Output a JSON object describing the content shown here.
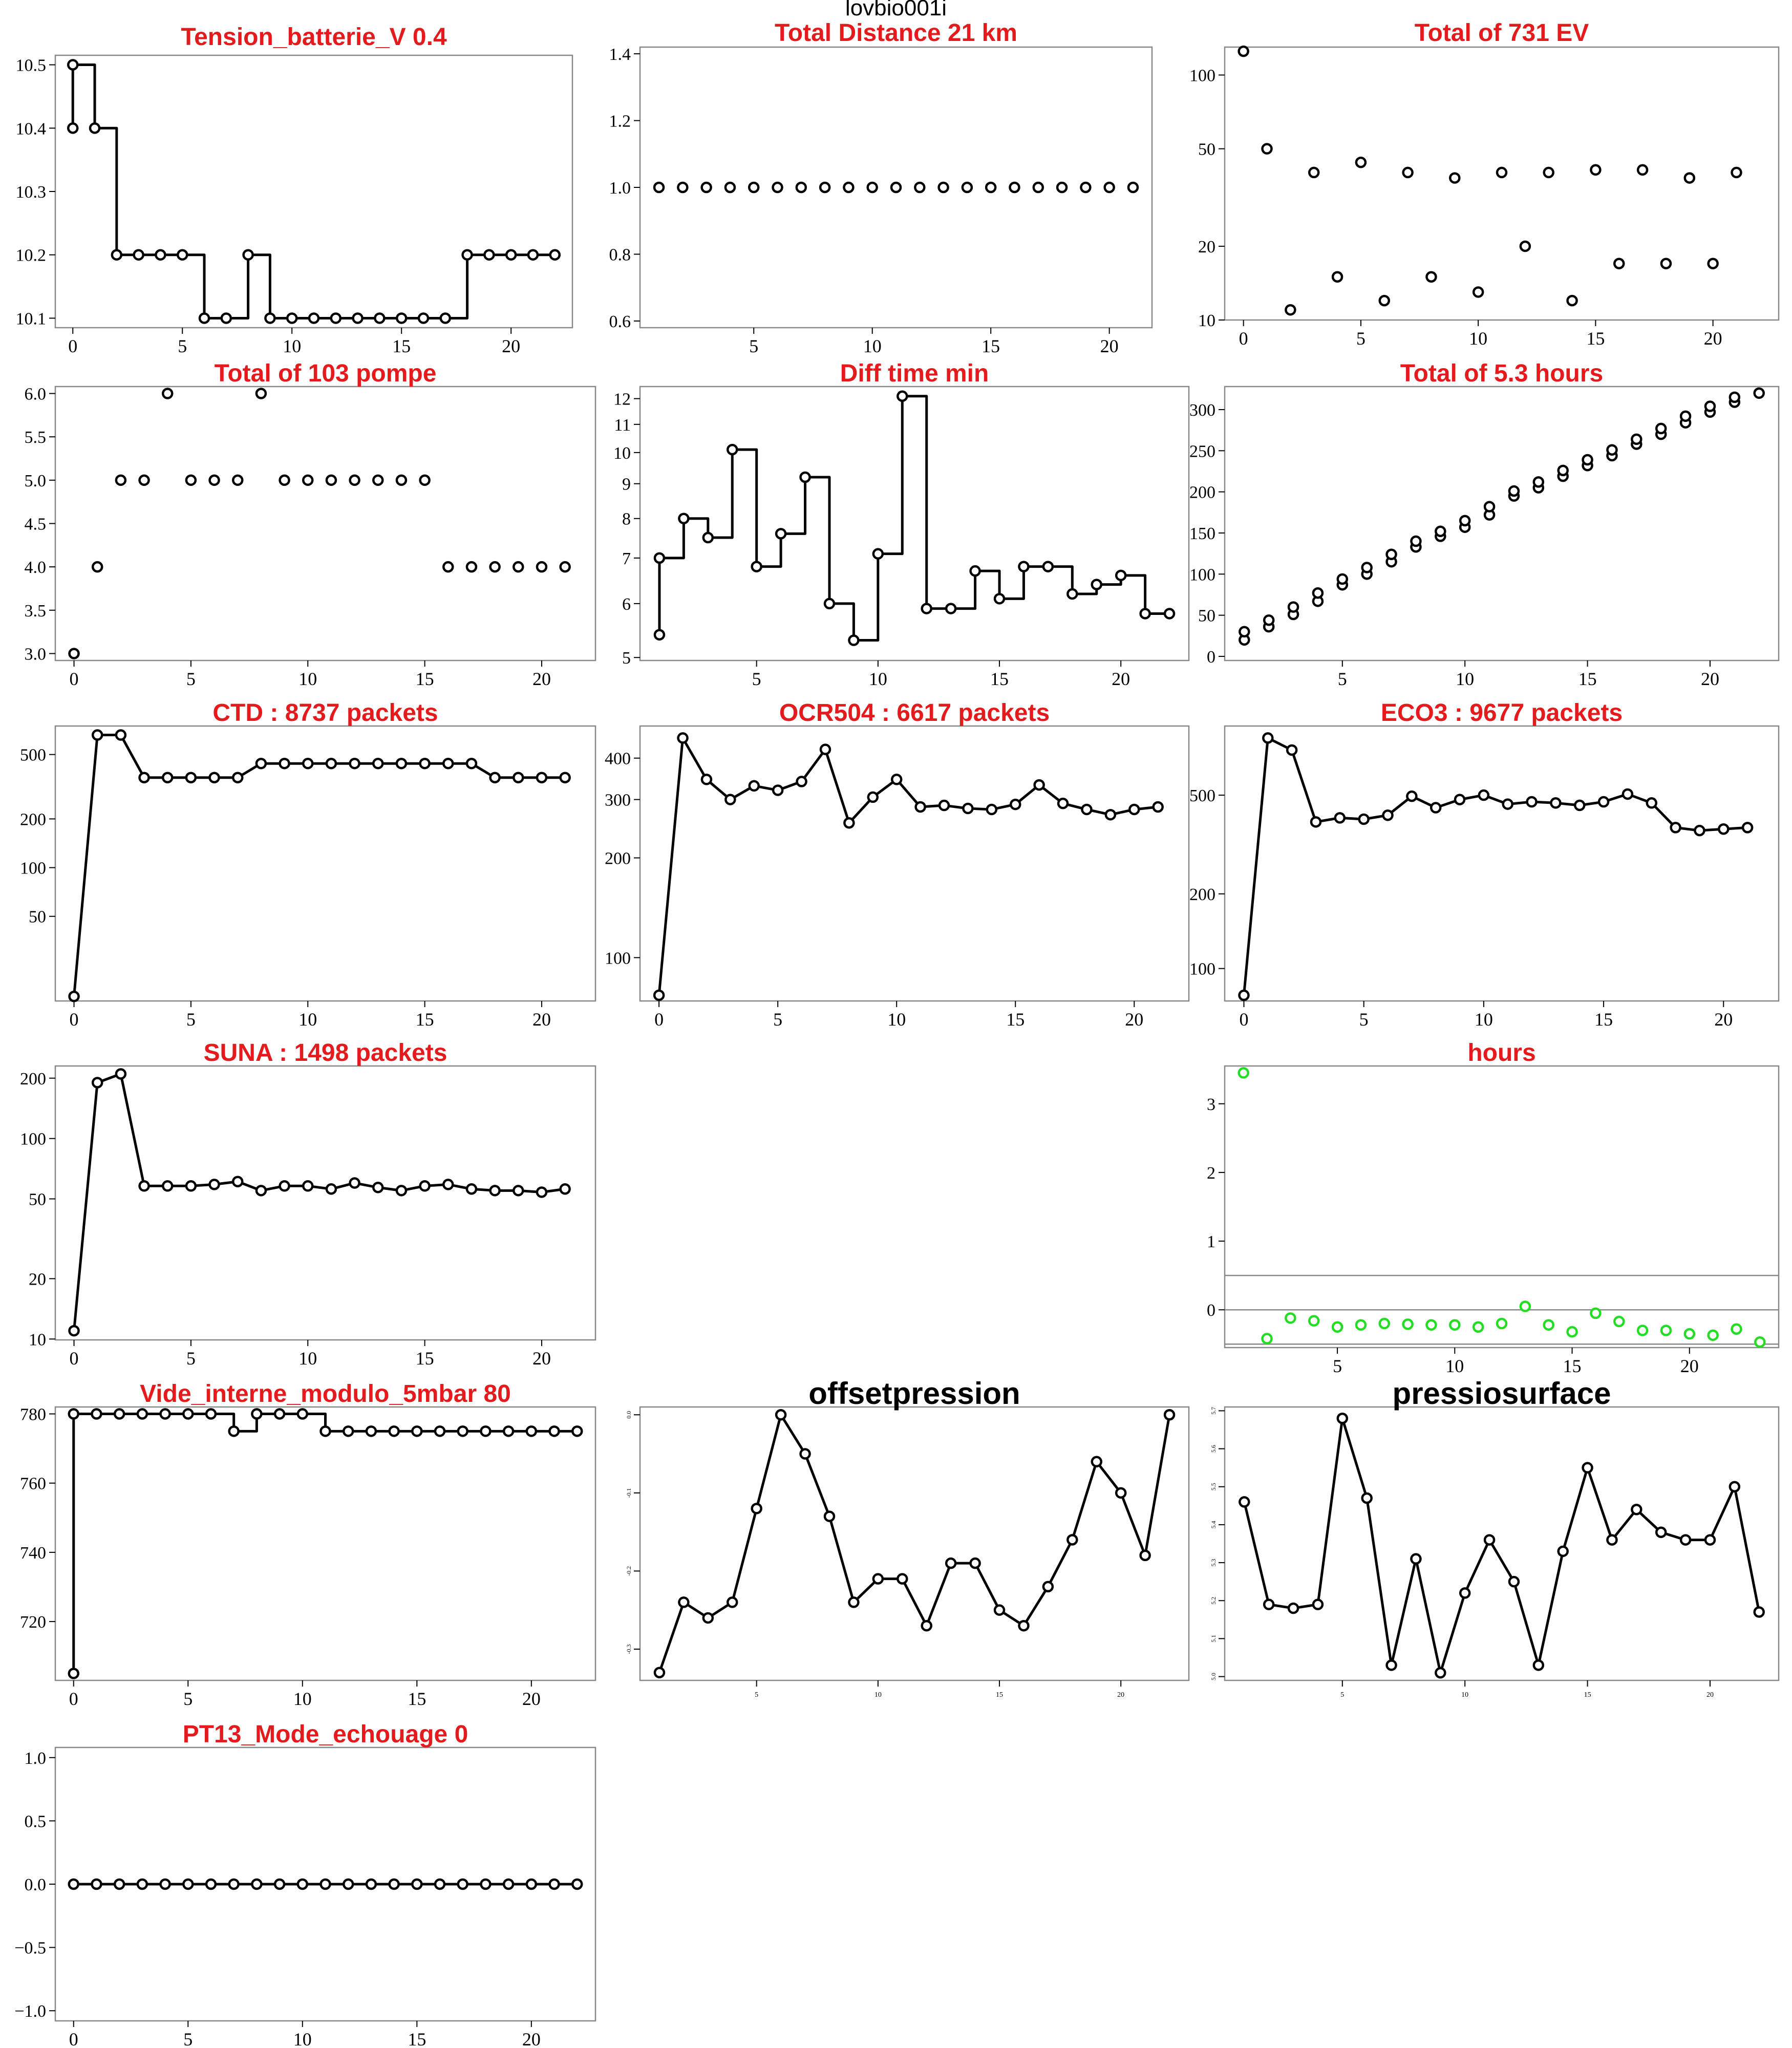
{
  "page_title": "lovbio001i",
  "colors": {
    "title_red": "#e41a1c",
    "title_black": "#000000",
    "green": "#22dd22",
    "line": "#000000",
    "frame": "#888888"
  },
  "chart_data": [
    {
      "type": "line",
      "step": true,
      "title": "Tension_batterie_V 0.4",
      "title_color": "red",
      "x": [
        0,
        1,
        2,
        3,
        4,
        5,
        6,
        7,
        8,
        9,
        10,
        11,
        12,
        13,
        14,
        15,
        16,
        17,
        18,
        19,
        20,
        21,
        22
      ],
      "y": [
        10.5,
        10.4,
        10.2,
        10.2,
        10.2,
        10.2,
        10.1,
        10.1,
        10.2,
        10.1,
        10.1,
        10.1,
        10.1,
        10.1,
        10.1,
        10.1,
        10.1,
        10.1,
        10.2,
        10.2,
        10.2,
        10.2,
        10.2
      ],
      "y_start": 10.4,
      "xlim": [
        -0.8,
        22.8
      ],
      "xticks": [
        0,
        5,
        10,
        15,
        20
      ],
      "ylim": [
        10.085,
        10.515
      ],
      "yticks": [
        10.1,
        10.2,
        10.3,
        10.4,
        10.5
      ],
      "ytick_labels": [
        "10.1",
        "10.2",
        "10.3",
        "10.4",
        "10.5"
      ]
    },
    {
      "type": "scatter",
      "title": "Total Distance  21  km",
      "title_color": "red",
      "x": [
        1,
        2,
        3,
        4,
        5,
        6,
        7,
        8,
        9,
        10,
        11,
        12,
        13,
        14,
        15,
        16,
        17,
        18,
        19,
        20,
        21
      ],
      "y": [
        1,
        1,
        1,
        1,
        1,
        1,
        1,
        1,
        1,
        1,
        1,
        1,
        1,
        1,
        1,
        1,
        1,
        1,
        1,
        1,
        1
      ],
      "xlim": [
        0.2,
        21.8
      ],
      "xticks": [
        5,
        10,
        15,
        20
      ],
      "ylim": [
        0.58,
        1.42
      ],
      "yticks": [
        0.6,
        0.8,
        1.0,
        1.2,
        1.4
      ],
      "ytick_labels": [
        "0.6",
        "0.8",
        "1.0",
        "1.2",
        "1.4"
      ]
    },
    {
      "type": "scatter",
      "title": "Total of  731  EV",
      "title_color": "red",
      "yscale": "log",
      "x": [
        0,
        1,
        2,
        3,
        4,
        5,
        6,
        7,
        8,
        9,
        10,
        11,
        12,
        13,
        14,
        15,
        16,
        17,
        18,
        19,
        20,
        21
      ],
      "y": [
        125,
        50,
        11,
        40,
        15,
        44,
        12,
        40,
        15,
        38,
        13,
        40,
        20,
        40,
        12,
        41,
        17,
        41,
        17,
        38,
        17,
        40
      ],
      "xlim": [
        -0.8,
        22.8
      ],
      "xticks": [
        0,
        5,
        10,
        15,
        20
      ],
      "ylim": [
        10,
        130
      ],
      "yticks": [
        10,
        20,
        50,
        100
      ],
      "ytick_labels": [
        "10",
        "20",
        "50",
        "100"
      ]
    },
    {
      "type": "scatter",
      "title": "Total of  103  pompe",
      "title_color": "red",
      "x": [
        0,
        1,
        2,
        3,
        4,
        5,
        6,
        7,
        8,
        9,
        10,
        11,
        12,
        13,
        14,
        15,
        16,
        17,
        18,
        19,
        20,
        21
      ],
      "y": [
        3,
        4,
        5,
        5,
        6,
        5,
        5,
        5,
        6,
        5,
        5,
        5,
        5,
        5,
        5,
        5,
        4,
        4,
        4,
        4,
        4,
        4
      ],
      "xlim": [
        -0.8,
        22.3
      ],
      "xticks": [
        0,
        5,
        10,
        15,
        20
      ],
      "ylim": [
        2.92,
        6.08
      ],
      "yticks": [
        3.0,
        3.5,
        4.0,
        4.5,
        5.0,
        5.5,
        6.0
      ],
      "ytick_labels": [
        "3.0",
        "3.5",
        "4.0",
        "4.5",
        "5.0",
        "5.5",
        "6.0"
      ]
    },
    {
      "type": "line",
      "step": true,
      "title": "Diff time min",
      "title_color": "red",
      "yscale": "log",
      "x": [
        1,
        2,
        3,
        4,
        5,
        6,
        7,
        8,
        9,
        10,
        11,
        12,
        13,
        14,
        15,
        16,
        17,
        18,
        19,
        20,
        21,
        22
      ],
      "y": [
        7,
        8,
        7.5,
        10.1,
        6.8,
        7.6,
        9.2,
        6,
        5.3,
        7.1,
        12.1,
        5.9,
        5.9,
        6.7,
        6.1,
        6.8,
        6.8,
        6.2,
        6.4,
        6.6,
        5.8,
        5.8
      ],
      "y_start": 5.4,
      "xlim": [
        0.2,
        22.8
      ],
      "xticks": [
        5,
        10,
        15,
        20
      ],
      "ylim": [
        4.95,
        12.5
      ],
      "yticks": [
        5,
        6,
        7,
        8,
        9,
        10,
        11,
        12
      ],
      "ytick_labels": [
        "5",
        "6",
        "7",
        "8",
        "9",
        "10",
        "11",
        "12"
      ]
    },
    {
      "type": "scatter",
      "title": "Total of  5.3  hours",
      "title_color": "red",
      "x": [
        1,
        1,
        2,
        2,
        3,
        3,
        4,
        4,
        5,
        5,
        6,
        6,
        7,
        7,
        8,
        8,
        9,
        9,
        10,
        10,
        11,
        11,
        12,
        12,
        13,
        13,
        14,
        14,
        15,
        15,
        16,
        16,
        17,
        17,
        18,
        18,
        19,
        19,
        20,
        20,
        21,
        21,
        22
      ],
      "y": [
        20,
        30,
        36,
        44,
        51,
        60,
        67,
        77,
        87,
        94,
        100,
        108,
        115,
        124,
        133,
        140,
        146,
        152,
        157,
        165,
        172,
        182,
        195,
        201,
        205,
        212,
        219,
        226,
        232,
        239,
        244,
        251,
        258,
        264,
        270,
        277,
        284,
        292,
        297,
        304,
        309,
        315,
        320
      ],
      "xlim": [
        0.2,
        22.8
      ],
      "xticks": [
        5,
        10,
        15,
        20
      ],
      "ylim": [
        -5,
        328
      ],
      "yticks": [
        0,
        50,
        100,
        150,
        200,
        250,
        300
      ],
      "ytick_labels": [
        "0",
        "50",
        "100",
        "150",
        "200",
        "250",
        "300"
      ]
    },
    {
      "type": "line",
      "title": "CTD  : 8737  packets",
      "title_color": "red",
      "yscale": "log",
      "x": [
        0,
        1,
        2,
        3,
        4,
        5,
        6,
        7,
        8,
        9,
        10,
        11,
        12,
        13,
        14,
        15,
        16,
        17,
        18,
        19,
        20,
        21
      ],
      "y": [
        16,
        660,
        660,
        360,
        360,
        360,
        360,
        360,
        440,
        440,
        440,
        440,
        440,
        440,
        440,
        440,
        440,
        440,
        360,
        360,
        360,
        360
      ],
      "xlim": [
        -0.8,
        22.3
      ],
      "xticks": [
        0,
        5,
        10,
        15,
        20
      ],
      "ylim": [
        15,
        750
      ],
      "yticks": [
        50,
        100,
        200,
        500
      ],
      "ytick_labels": [
        "50",
        "100",
        "200",
        "500"
      ]
    },
    {
      "type": "line",
      "title": "OCR504  : 6617  packets",
      "title_color": "red",
      "yscale": "log",
      "x": [
        0,
        1,
        2,
        3,
        4,
        5,
        6,
        7,
        8,
        9,
        10,
        11,
        12,
        13,
        14,
        15,
        16,
        17,
        18,
        19,
        20,
        21
      ],
      "y": [
        77,
        460,
        345,
        300,
        330,
        320,
        340,
        425,
        255,
        305,
        345,
        285,
        288,
        282,
        280,
        290,
        332,
        292,
        280,
        270,
        280,
        285
      ],
      "xlim": [
        -0.8,
        22.3
      ],
      "xticks": [
        0,
        5,
        10,
        15,
        20
      ],
      "ylim": [
        74,
        500
      ],
      "yticks": [
        100,
        200,
        300,
        400
      ],
      "ytick_labels": [
        "100",
        "200",
        "300",
        "400"
      ]
    },
    {
      "type": "line",
      "title": "ECO3  : 9677  packets",
      "title_color": "red",
      "yscale": "log",
      "x": [
        0,
        1,
        2,
        3,
        4,
        5,
        6,
        7,
        8,
        9,
        10,
        11,
        12,
        13,
        14,
        15,
        16,
        17,
        18,
        19,
        20,
        21
      ],
      "y": [
        78,
        850,
        760,
        390,
        405,
        400,
        415,
        495,
        445,
        480,
        500,
        460,
        470,
        465,
        455,
        470,
        505,
        465,
        370,
        360,
        365,
        370
      ],
      "xlim": [
        -0.8,
        22.3
      ],
      "xticks": [
        0,
        5,
        10,
        15,
        20
      ],
      "ylim": [
        74,
        950
      ],
      "yticks": [
        100,
        200,
        500
      ],
      "ytick_labels": [
        "100",
        "200",
        "500"
      ]
    },
    {
      "type": "line",
      "title": "SUNA  : 1498  packets",
      "title_color": "red",
      "yscale": "log",
      "x": [
        0,
        1,
        2,
        3,
        4,
        5,
        6,
        7,
        8,
        9,
        10,
        11,
        12,
        13,
        14,
        15,
        16,
        17,
        18,
        19,
        20,
        21
      ],
      "y": [
        11,
        190,
        210,
        58,
        58,
        58,
        59,
        61,
        55,
        58,
        58,
        56,
        60,
        57,
        55,
        58,
        59,
        56,
        55,
        55,
        54,
        56
      ],
      "xlim": [
        -0.8,
        22.3
      ],
      "xticks": [
        0,
        5,
        10,
        15,
        20
      ],
      "ylim": [
        9.9,
        230
      ],
      "yticks": [
        10,
        20,
        50,
        100,
        200
      ],
      "ytick_labels": [
        "10",
        "20",
        "50",
        "100",
        "200"
      ]
    },
    {
      "type": "scatter",
      "title": "hours",
      "title_color": "red",
      "marker_color": "green",
      "x": [
        1,
        2,
        3,
        4,
        5,
        6,
        7,
        8,
        9,
        10,
        11,
        12,
        13,
        14,
        15,
        16,
        17,
        18,
        19,
        20,
        21,
        22,
        23
      ],
      "y": [
        3.45,
        -0.42,
        -0.12,
        -0.16,
        -0.25,
        -0.22,
        -0.2,
        -0.21,
        -0.22,
        -0.22,
        -0.25,
        -0.2,
        0.05,
        -0.22,
        -0.32,
        -0.05,
        -0.17,
        -0.3,
        -0.3,
        -0.35,
        -0.37,
        -0.28,
        -0.47
      ],
      "hlines": [
        -0.5,
        0,
        0.5
      ],
      "xlim": [
        0.2,
        23.8
      ],
      "xticks": [
        5,
        10,
        15,
        20
      ],
      "ylim": [
        -0.55,
        3.55
      ],
      "yticks": [
        0,
        1,
        2,
        3
      ],
      "ytick_labels": [
        "0",
        "1",
        "2",
        "3"
      ]
    },
    {
      "type": "line",
      "step": true,
      "title": "Vide_interne_modulo_5mbar 80",
      "title_color": "red",
      "x": [
        0,
        1,
        2,
        3,
        4,
        5,
        6,
        7,
        8,
        9,
        10,
        11,
        12,
        13,
        14,
        15,
        16,
        17,
        18,
        19,
        20,
        21,
        22
      ],
      "y": [
        780,
        780,
        780,
        780,
        780,
        780,
        780,
        775,
        780,
        780,
        780,
        775,
        775,
        775,
        775,
        775,
        775,
        775,
        775,
        775,
        775,
        775,
        775
      ],
      "y_start": 705,
      "xlim": [
        -0.8,
        22.8
      ],
      "xticks": [
        0,
        5,
        10,
        15,
        20
      ],
      "ylim": [
        703,
        782
      ],
      "yticks": [
        720,
        740,
        760,
        780
      ],
      "ytick_labels": [
        "720",
        "740",
        "760",
        "780"
      ]
    },
    {
      "type": "line",
      "title": "offsetpression",
      "title_color": "black",
      "x": [
        1,
        2,
        3,
        4,
        5,
        6,
        7,
        8,
        9,
        10,
        11,
        12,
        13,
        14,
        15,
        16,
        17,
        18,
        19,
        20,
        21,
        22
      ],
      "y": [
        -0.33,
        -0.24,
        -0.26,
        -0.24,
        -0.12,
        0.0,
        -0.05,
        -0.13,
        -0.24,
        -0.21,
        -0.21,
        -0.27,
        -0.19,
        -0.19,
        -0.25,
        -0.27,
        -0.22,
        -0.16,
        -0.06,
        -0.1,
        -0.18,
        0.0
      ],
      "xlim": [
        0.2,
        22.8
      ],
      "xticks": [
        5,
        10,
        15,
        20
      ],
      "ylim": [
        -0.34,
        0.01
      ],
      "yticks": [
        -0.3,
        -0.2,
        -0.1,
        0.0
      ],
      "ytick_labels": [
        "-0.3",
        "-0.2",
        "-0.1",
        "0.0"
      ]
    },
    {
      "type": "line",
      "title": "pressiosurface",
      "title_color": "black",
      "x": [
        1,
        2,
        3,
        4,
        5,
        6,
        7,
        8,
        9,
        10,
        11,
        12,
        13,
        14,
        15,
        16,
        17,
        18,
        19,
        20,
        21,
        22
      ],
      "y": [
        5.46,
        5.19,
        5.18,
        5.19,
        5.68,
        5.47,
        5.03,
        5.31,
        5.01,
        5.22,
        5.36,
        5.25,
        5.03,
        5.33,
        5.55,
        5.36,
        5.44,
        5.38,
        5.36,
        5.36,
        5.5,
        5.17
      ],
      "xlim": [
        0.2,
        22.8
      ],
      "xticks": [
        5,
        10,
        15,
        20
      ],
      "ylim": [
        4.99,
        5.71
      ],
      "yticks": [
        5.0,
        5.1,
        5.2,
        5.3,
        5.4,
        5.5,
        5.6,
        5.7
      ],
      "ytick_labels": [
        "5.0",
        "5.1",
        "5.2",
        "5.3",
        "5.4",
        "5.5",
        "5.6",
        "5.7"
      ]
    },
    {
      "type": "line",
      "title": "PT13_Mode_echouage  0",
      "title_color": "red",
      "x": [
        0,
        1,
        2,
        3,
        4,
        5,
        6,
        7,
        8,
        9,
        10,
        11,
        12,
        13,
        14,
        15,
        16,
        17,
        18,
        19,
        20,
        21,
        22
      ],
      "y": [
        0,
        0,
        0,
        0,
        0,
        0,
        0,
        0,
        0,
        0,
        0,
        0,
        0,
        0,
        0,
        0,
        0,
        0,
        0,
        0,
        0,
        0,
        0
      ],
      "xlim": [
        -0.8,
        22.8
      ],
      "xticks": [
        0,
        5,
        10,
        15,
        20
      ],
      "ylim": [
        -1.08,
        1.08
      ],
      "yticks": [
        -1.0,
        -0.5,
        0.0,
        0.5,
        1.0
      ],
      "ytick_labels": [
        "−1.0",
        "−0.5",
        "0.0",
        "0.5",
        "1.0"
      ]
    }
  ]
}
